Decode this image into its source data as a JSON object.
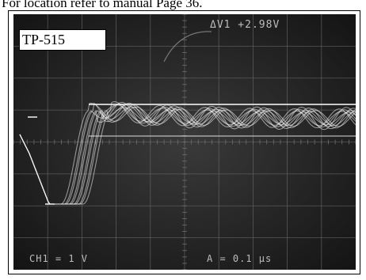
{
  "caption": "For location refer to manual Page 36.",
  "probe_label": "TP-515",
  "readouts": {
    "delta_v": "ΔV1   +2.98V",
    "channel_scale": "CH1 = 1 V",
    "time_scale": "A = 0.1 µs"
  },
  "colors": {
    "screen_bg": "#1c1c1c",
    "grid": "#6e6e6e",
    "trace": "#f2f2f2"
  }
}
